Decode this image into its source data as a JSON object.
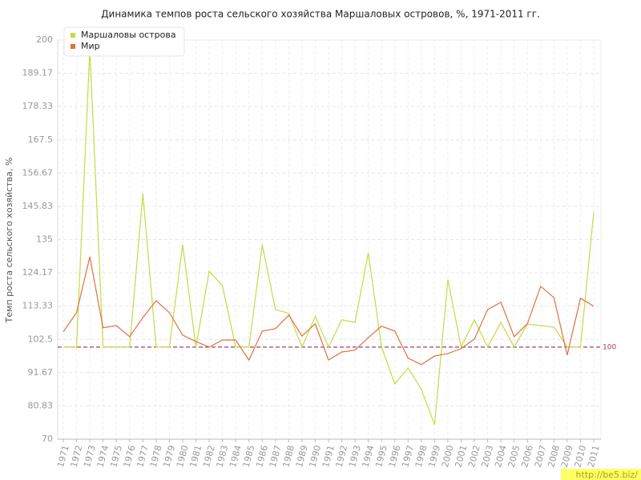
{
  "chart_data": {
    "type": "line",
    "title": "Динамика темпов роста сельского хозяйства Маршаловых островов, %, 1971-2011 гг.",
    "ylabel": "Темп роста сельского хозяйства, %",
    "categories": [
      "1971",
      "1972",
      "1973",
      "1974",
      "1975",
      "1976",
      "1977",
      "1978",
      "1979",
      "1980",
      "1981",
      "1982",
      "1983",
      "1984",
      "1985",
      "1986",
      "1987",
      "1988",
      "1989",
      "1990",
      "1991",
      "1992",
      "1993",
      "1994",
      "1995",
      "1996",
      "1997",
      "1998",
      "1999",
      "2000",
      "2001",
      "2002",
      "2003",
      "2004",
      "2005",
      "2006",
      "2007",
      "2008",
      "2009",
      "2010",
      "2011"
    ],
    "series": [
      {
        "name": "Маршаловы острова",
        "color": "#c2dc45",
        "values": [
          100,
          100,
          197,
          100,
          100,
          100,
          150,
          100,
          100,
          133.3,
          100,
          124.7,
          120,
          100,
          100,
          133.3,
          112.2,
          111,
          100,
          110,
          100,
          108.9,
          108,
          130.7,
          100,
          88,
          93.2,
          86.2,
          74.7,
          122,
          100,
          108.9,
          100,
          108,
          100,
          107.5,
          107,
          106.5,
          100,
          100,
          144
        ]
      },
      {
        "name": "Мир",
        "color": "#e0703f",
        "values": [
          105,
          111.2,
          129.4,
          106.3,
          107,
          103.4,
          109.6,
          115.1,
          111.2,
          103.9,
          101.8,
          100,
          102.3,
          102.3,
          95.8,
          105.2,
          106,
          110.4,
          103.6,
          107.6,
          95.8,
          98.4,
          99,
          103.1,
          106.8,
          105.2,
          96.4,
          94.3,
          97.1,
          97.9,
          99.5,
          102.6,
          112.2,
          114.6,
          103.4,
          107.6,
          119.8,
          116.1,
          97.4,
          115.9,
          113.3
        ]
      }
    ],
    "ylim": [
      70,
      200
    ],
    "yticks": [
      70,
      80.83,
      91.67,
      102.5,
      113.33,
      124.17,
      135,
      145.83,
      156.67,
      167.5,
      178.33,
      189.17,
      200
    ],
    "reference_line": 100,
    "grid": true,
    "legend": "top-left",
    "watermark": "http://be5.biz/"
  }
}
